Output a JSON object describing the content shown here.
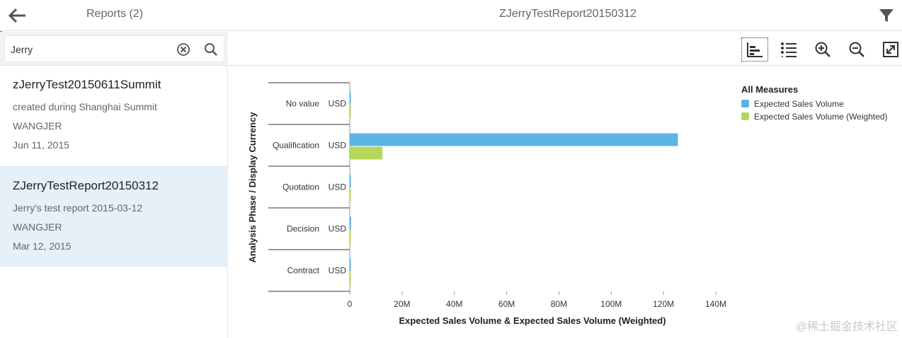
{
  "header": {
    "reports_label": "Reports (2)",
    "report_title": "ZJerryTestReport20150312"
  },
  "search": {
    "value": "Jerry"
  },
  "reports": [
    {
      "title": "zJerryTest20150611Summit",
      "description": "created during Shanghai Summit",
      "owner": "WANGJER",
      "date": "Jun 11, 2015",
      "selected": false
    },
    {
      "title": "ZJerryTestReport20150312",
      "description": "Jerry's test report 2015-03-12",
      "owner": "WANGJER",
      "date": "Mar 12, 2015",
      "selected": true
    }
  ],
  "toolbar": {
    "icons": [
      "bar-chart-icon",
      "list-icon",
      "zoom-in-icon",
      "zoom-out-icon",
      "fullscreen-icon"
    ]
  },
  "colors": {
    "series1": "#5cb4e4",
    "series2": "#b3d85a",
    "accent": "#2d9c9c",
    "selected_bg": "#e5f0f8"
  },
  "chart_data": {
    "type": "bar",
    "orientation": "horizontal",
    "categories": [
      {
        "label": "No value",
        "currency": "USD"
      },
      {
        "label": "Qualification",
        "currency": "USD"
      },
      {
        "label": "Quotation",
        "currency": "USD"
      },
      {
        "label": "Decision",
        "currency": "USD"
      },
      {
        "label": "Contract",
        "currency": "USD"
      }
    ],
    "series": [
      {
        "name": "Expected Sales Volume",
        "values": [
          0.2,
          125.5,
          0.2,
          0.5,
          0.2
        ]
      },
      {
        "name": "Expected Sales Volume (Weighted)",
        "values": [
          0.1,
          12.5,
          0.1,
          0.2,
          0.1
        ]
      }
    ],
    "xlabel": "Expected Sales Volume & Expected Sales Volume (Weighted)",
    "ylabel": "Analysis Phase / Display Currency",
    "xlim": [
      0,
      140
    ],
    "xticks": [
      "0",
      "20M",
      "40M",
      "60M",
      "80M",
      "100M",
      "120M",
      "140M"
    ],
    "legend_title": "All Measures",
    "legend_position": "top-right"
  },
  "watermark": "@稀土掘金技术社区"
}
